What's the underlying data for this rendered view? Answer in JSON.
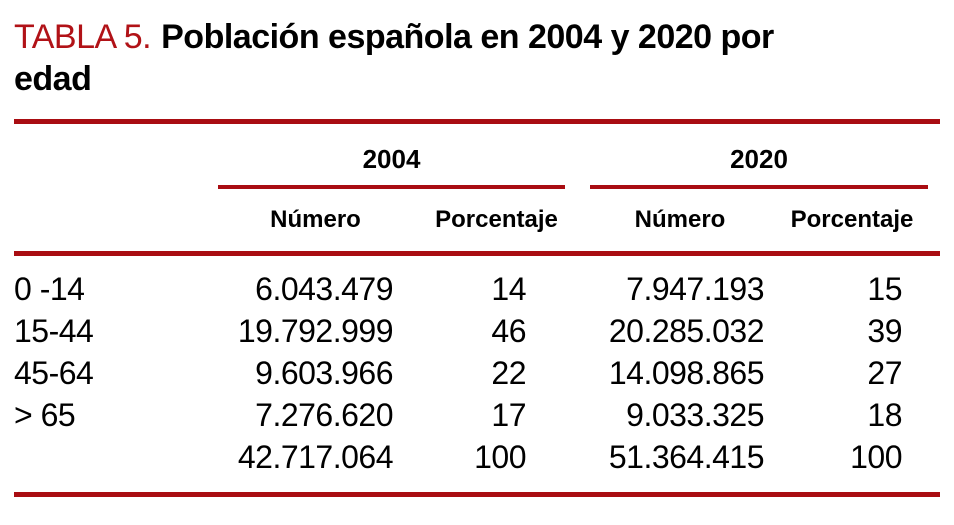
{
  "title": {
    "tag": "TABLA 5.",
    "heading": "Población española en 2004 y 2020 por edad"
  },
  "colors": {
    "accent_rule": "#A90D12",
    "title_tag": "#B11217",
    "text": "#000000"
  },
  "table": {
    "year_groups": [
      {
        "year": "2004"
      },
      {
        "year": "2020"
      }
    ],
    "columns": [
      "Número",
      "Porcentaje",
      "Número",
      "Porcentaje"
    ],
    "rows": [
      {
        "label": "0 -14",
        "values": [
          "6.043.479",
          "14",
          "7.947.193",
          "15"
        ]
      },
      {
        "label": "15-44",
        "values": [
          "19.792.999",
          "46",
          "20.285.032",
          "39"
        ]
      },
      {
        "label": "45-64",
        "values": [
          "9.603.966",
          "22",
          "14.098.865",
          "27"
        ]
      },
      {
        "label": "> 65",
        "values": [
          "7.276.620",
          "17",
          "9.033.325",
          "18"
        ]
      },
      {
        "label": "",
        "values": [
          "42.717.064",
          "100",
          "51.364.415",
          "100"
        ]
      }
    ]
  }
}
